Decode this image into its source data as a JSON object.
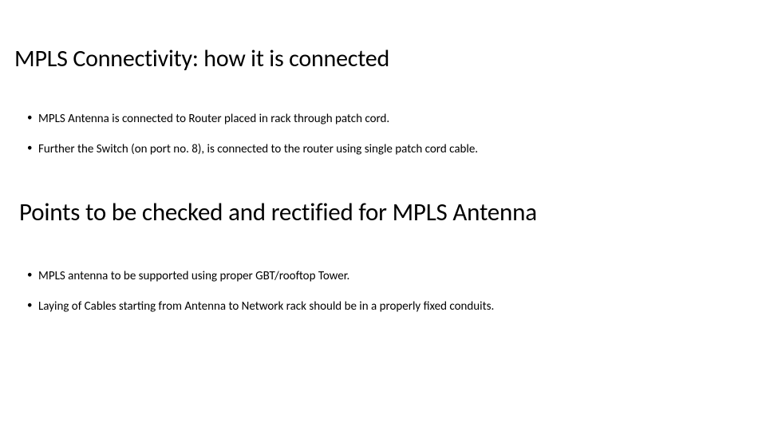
{
  "slide": {
    "heading1": "MPLS Connectivity: how it is connected",
    "section1": {
      "bullets": [
        "MPLS Antenna is connected to Router placed in rack through patch cord.",
        "Further the Switch (on port no. 8), is connected to the router using single patch cord cable."
      ]
    },
    "heading2": "Points to be checked and rectified for MPLS Antenna",
    "section2": {
      "bullets": [
        "MPLS antenna to be supported using proper GBT/rooftop Tower.",
        "Laying of Cables starting from Antenna to Network rack should be in a properly fixed conduits."
      ]
    }
  },
  "style": {
    "background_color": "#ffffff",
    "text_color": "#000000",
    "heading1_fontsize": 30,
    "heading2_fontsize": 31,
    "body_fontsize": 15,
    "font_family": "Calibri"
  }
}
